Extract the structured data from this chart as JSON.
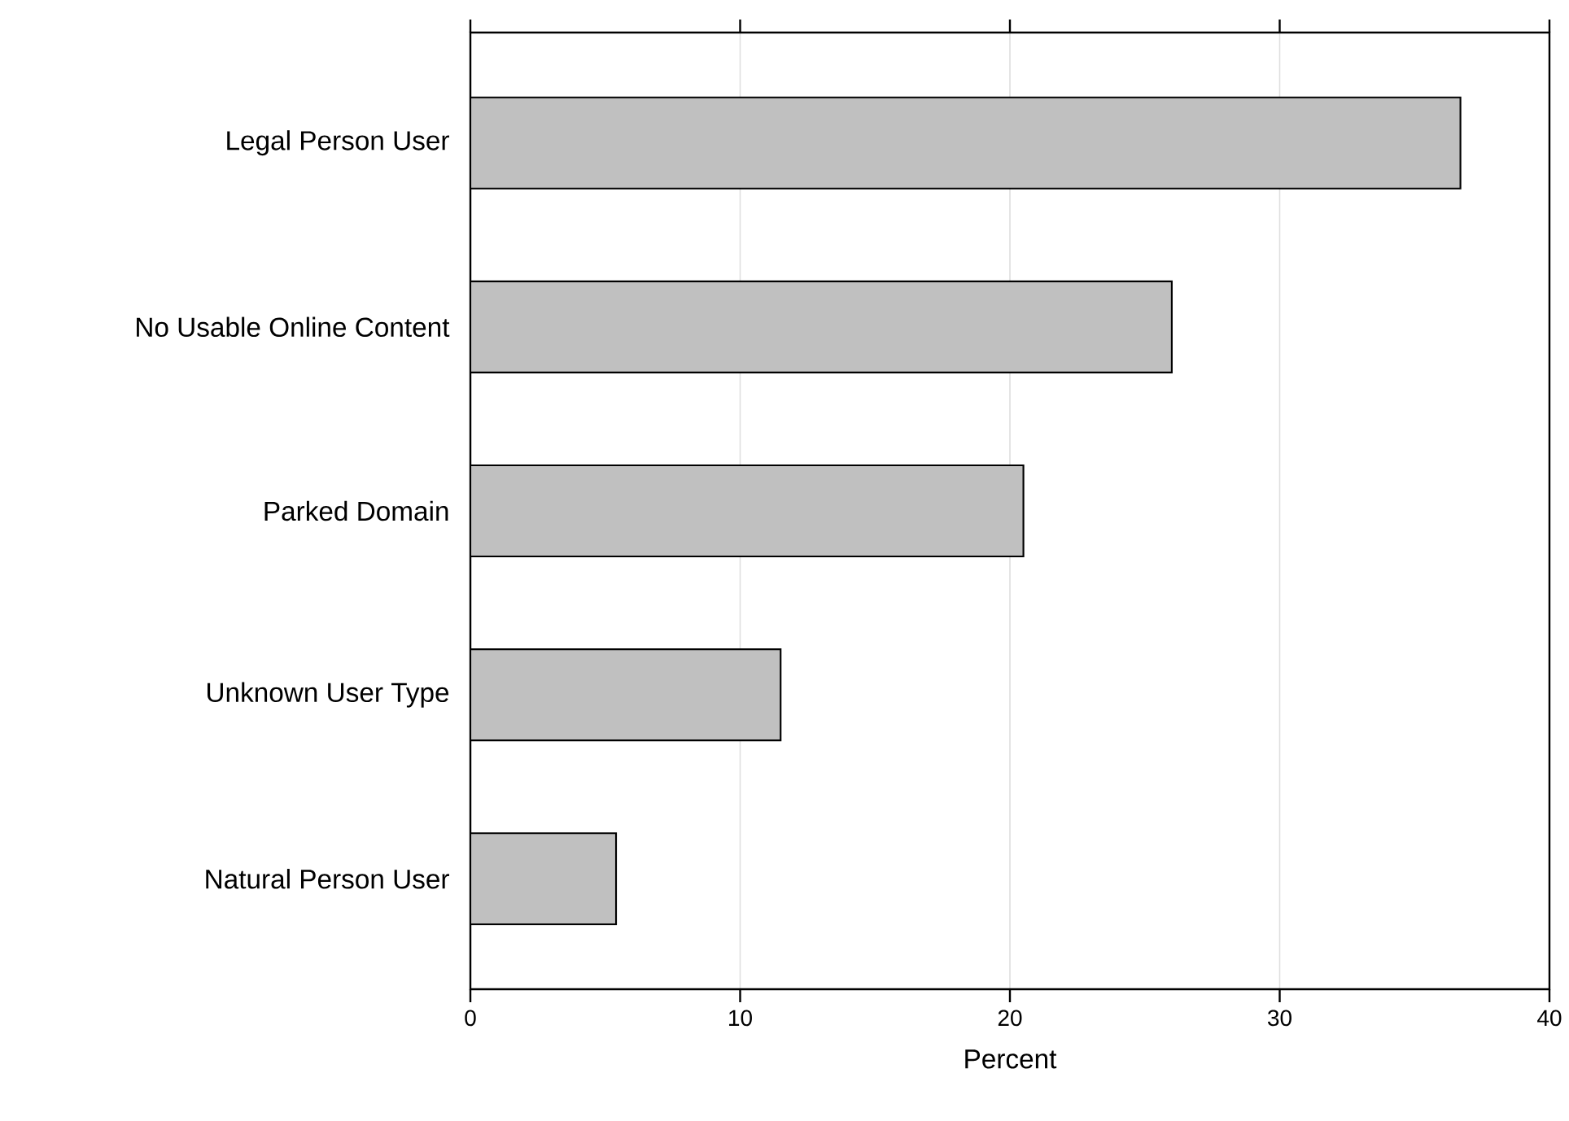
{
  "chart_data": {
    "type": "bar",
    "orientation": "horizontal",
    "categories": [
      "Legal Person User",
      "No Usable Online Content",
      "Parked Domain",
      "Unknown User Type",
      "Natural Person User"
    ],
    "values": [
      36.7,
      26.0,
      20.5,
      11.5,
      5.4
    ],
    "color": "#c0c0c0",
    "xlabel": "Percent",
    "xlim": [
      0,
      40
    ],
    "xticks": [
      0,
      10,
      20,
      30,
      40
    ],
    "grid": "x"
  }
}
